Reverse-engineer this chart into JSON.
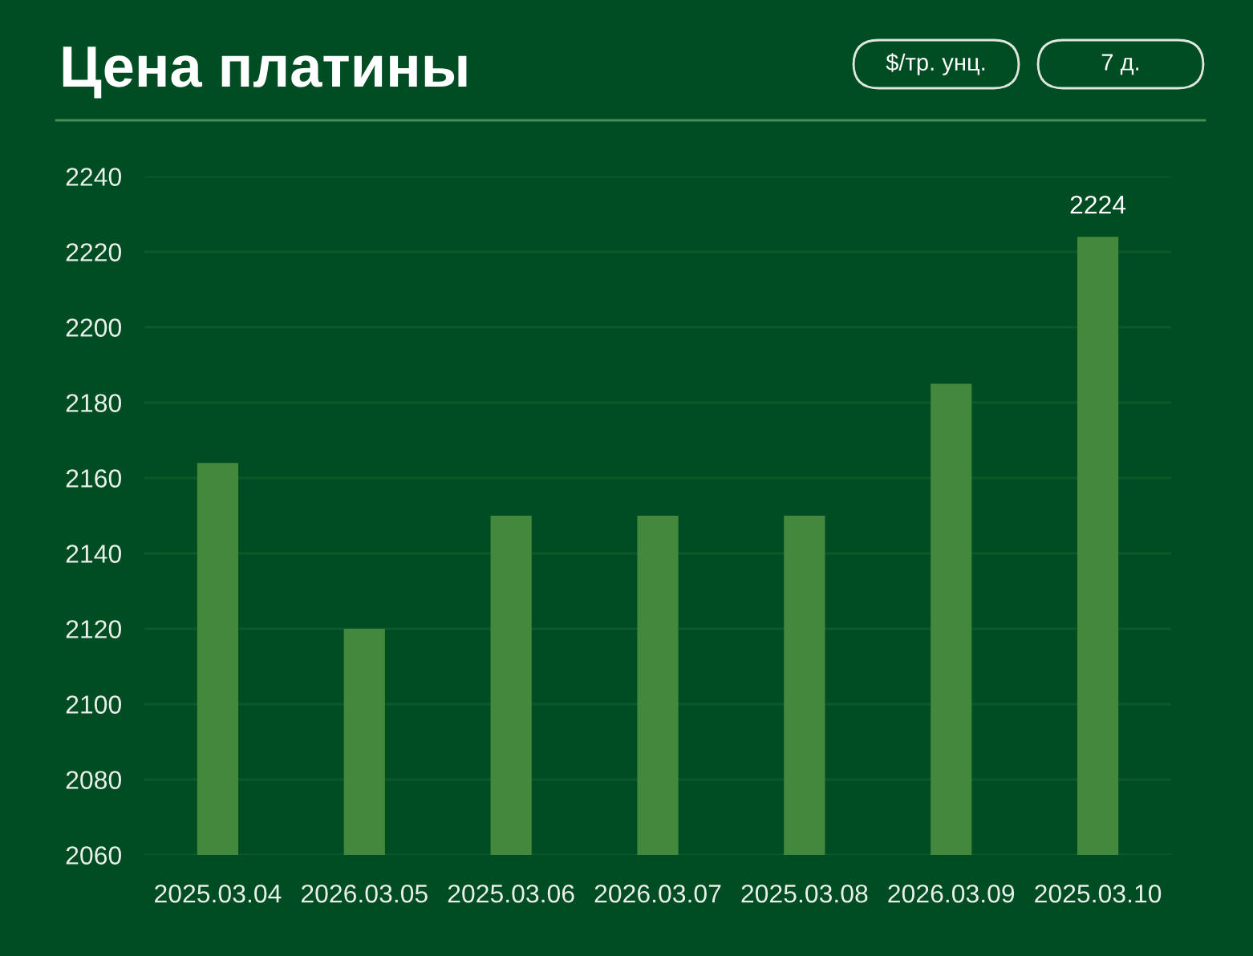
{
  "chart_data": {
    "type": "bar",
    "title": "Цена платины",
    "annotations": [
      "$/тр. унц.",
      "7 д."
    ],
    "categories": [
      "2025.03.04",
      "2026.03.05",
      "2025.03.06",
      "2026.03.07",
      "2025.03.08",
      "2026.03.09",
      "2025.03.10"
    ],
    "values": [
      2164,
      2120,
      2150,
      2150,
      2150,
      2185,
      2224
    ],
    "value_labels": [
      null,
      null,
      null,
      null,
      null,
      null,
      "2224"
    ],
    "color": "#44883e",
    "ylim": [
      2060,
      2240
    ],
    "yticks": [
      2060,
      2080,
      2100,
      2120,
      2140,
      2160,
      2180,
      2200,
      2220,
      2240
    ],
    "grid": "y"
  }
}
